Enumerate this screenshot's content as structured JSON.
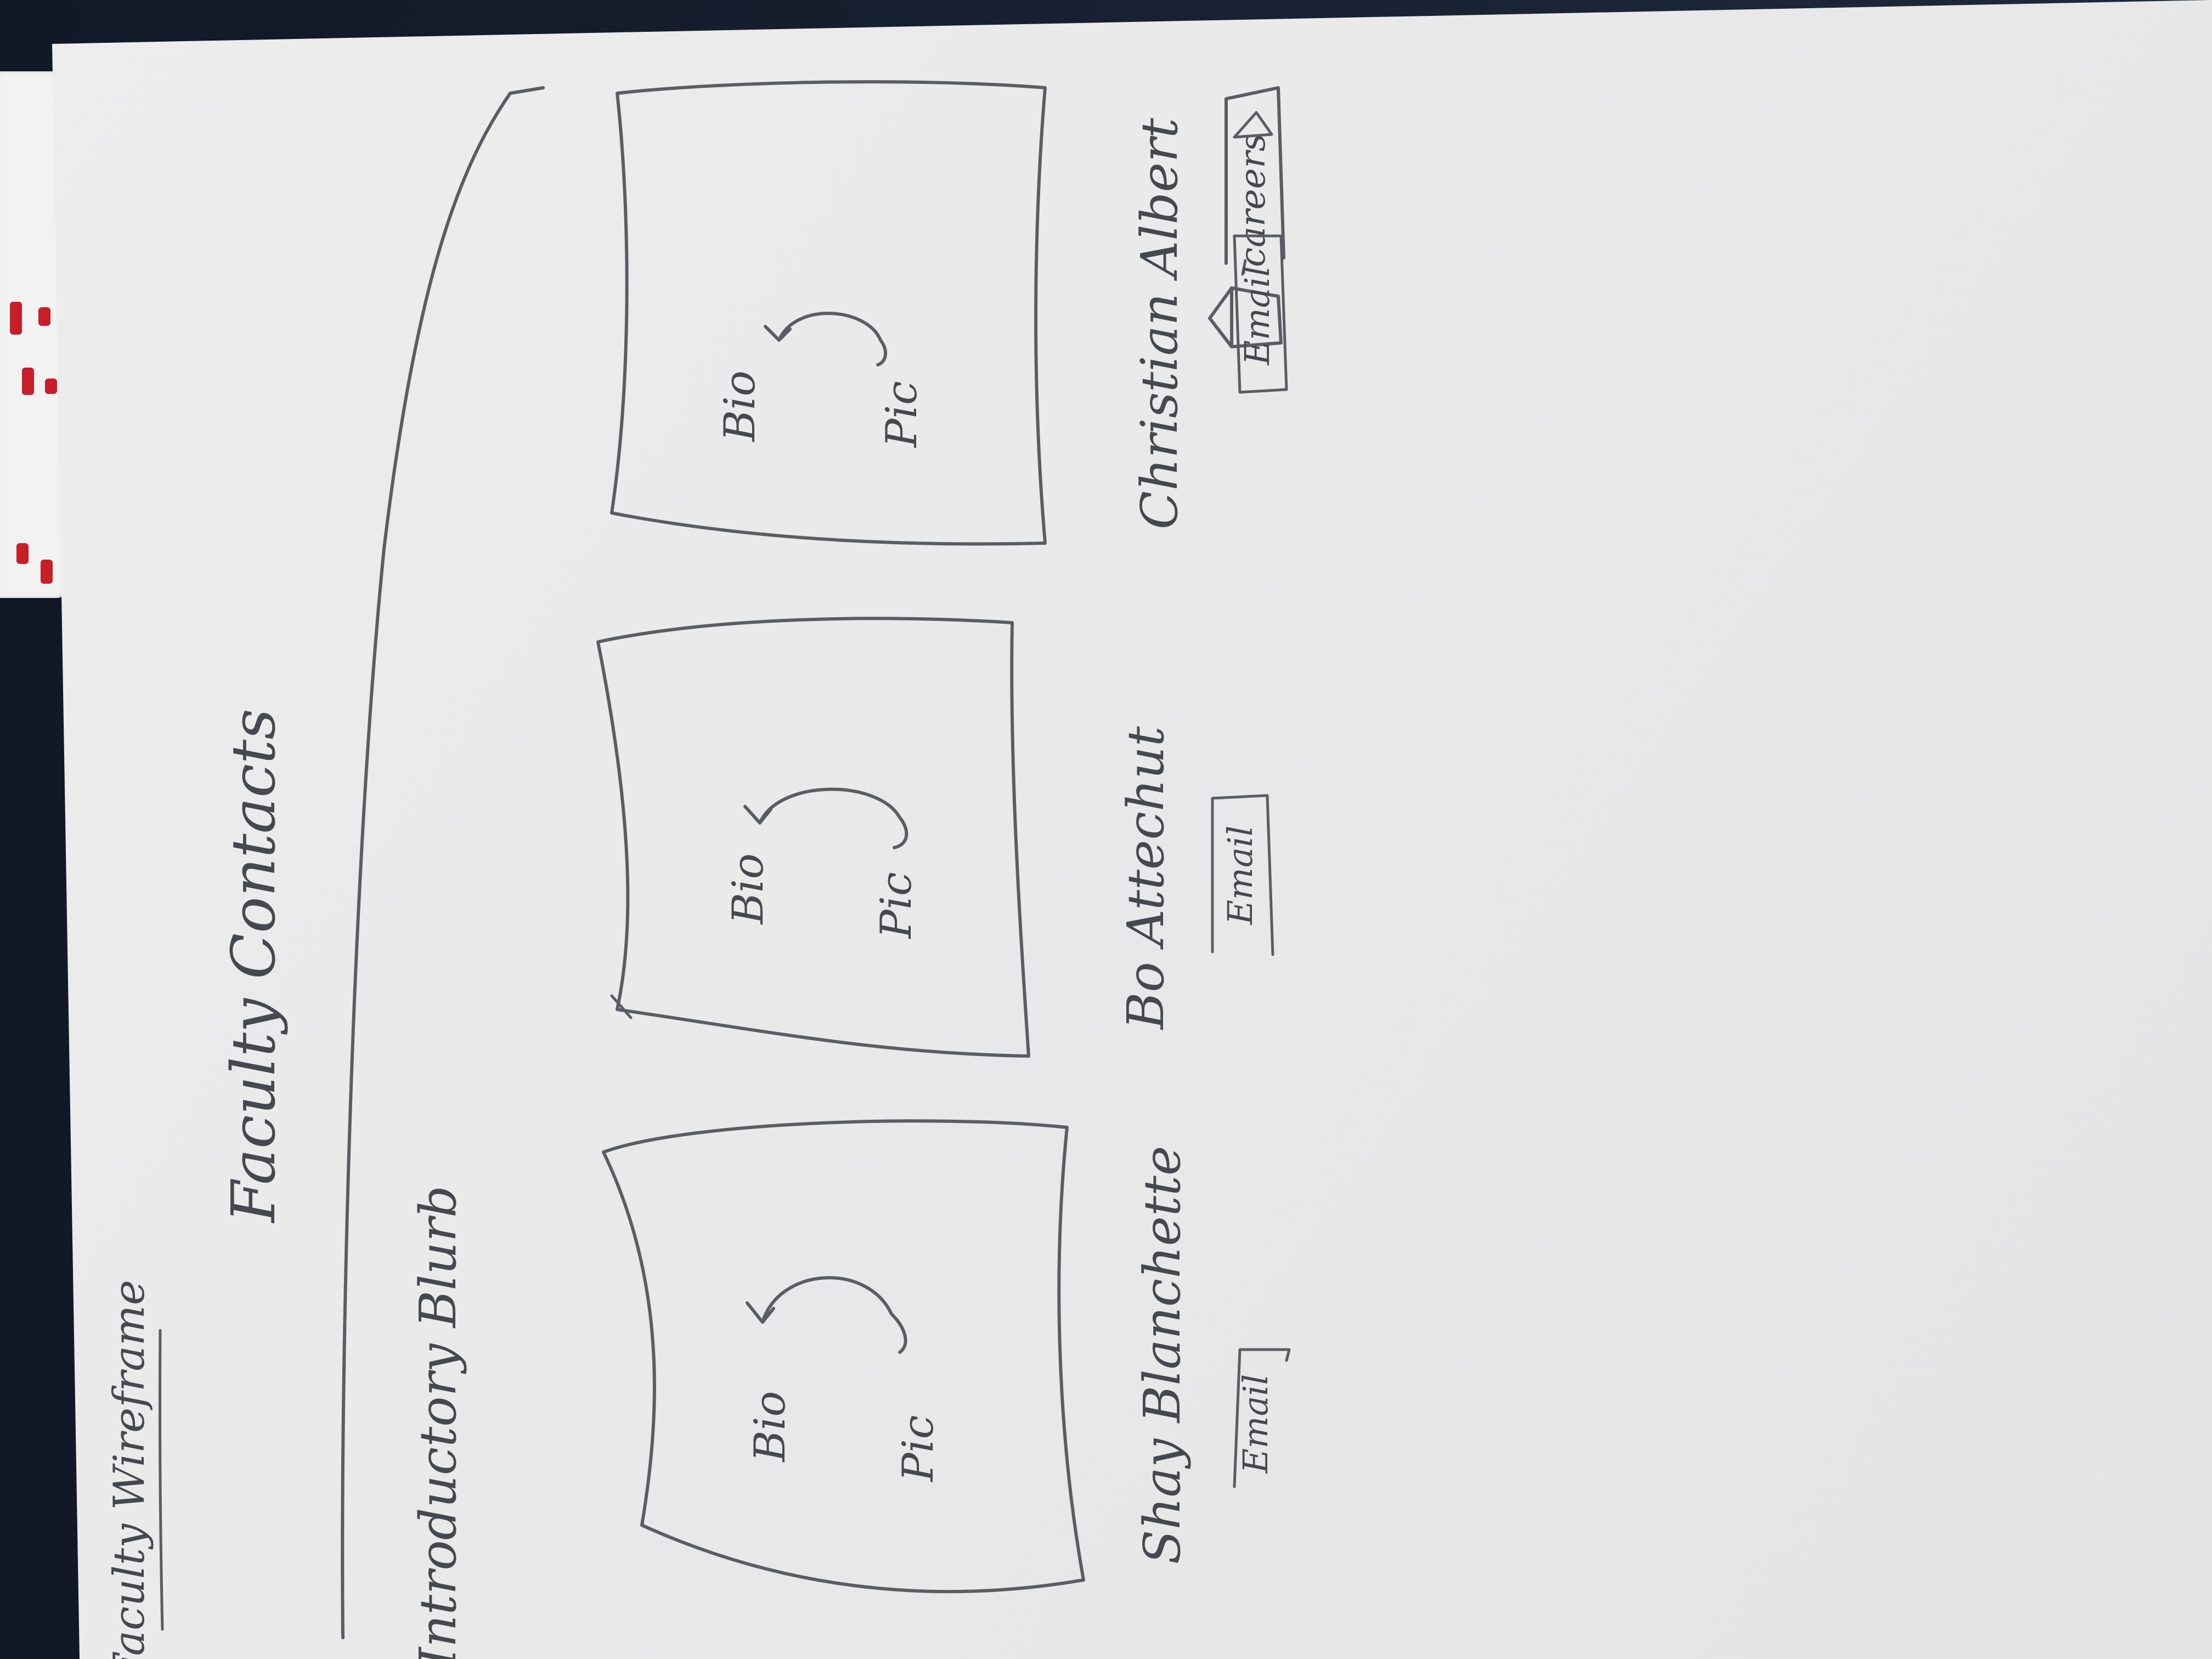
{
  "wireframe_title": "Faculty Wireframe",
  "page_heading": "Faculty Contacts",
  "intro_text": "Introductory Blurb",
  "nav": {
    "dropdown_label": "careers",
    "dropdown_icon": "triangle-down-icon",
    "home_icon": "home-icon"
  },
  "faculty_cards": [
    {
      "bio_label": "Bio",
      "pic_label": "Pic",
      "name": "Shay Blanchette",
      "email_button": "Email"
    },
    {
      "bio_label": "Bio",
      "pic_label": "Pic",
      "name": "Bo Attechut",
      "email_button": "Email"
    },
    {
      "bio_label": "Bio",
      "pic_label": "Pic",
      "name": "Christian Albert",
      "email_button": "Email"
    }
  ],
  "colors": {
    "paper": "#ebebec",
    "pencil": "#5a5d63",
    "desk": "#1b2233",
    "red_mark": "#c81e28"
  }
}
